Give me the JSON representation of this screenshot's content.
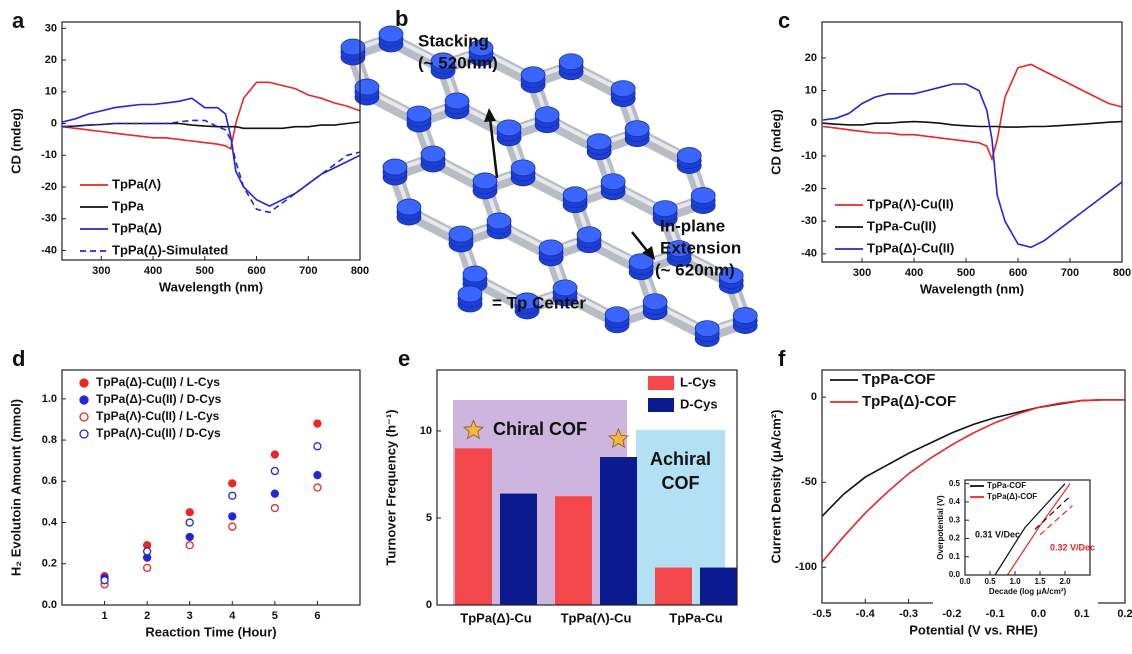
{
  "chart_data": [
    {
      "type": "line",
      "panel_label": "a",
      "x_label": "Wavelength (nm)",
      "y_label": "CD (mdeg)",
      "x": [
        225,
        250,
        275,
        300,
        325,
        350,
        375,
        400,
        425,
        450,
        475,
        500,
        525,
        540,
        550,
        560,
        575,
        600,
        625,
        650,
        675,
        700,
        725,
        750,
        775,
        800
      ],
      "xlim": [
        224,
        800
      ],
      "xticks": [
        300,
        400,
        500,
        600,
        700,
        800
      ],
      "ylim": [
        -43,
        32
      ],
      "yticks": [
        30,
        20,
        10,
        0,
        -10,
        -20,
        -30,
        -40
      ],
      "series": [
        {
          "name": "TpPa(Λ)",
          "color": "#ec2525",
          "style": "solid",
          "values": [
            -1,
            -1.5,
            -2,
            -2.5,
            -3,
            -3.5,
            -4,
            -4.5,
            -4.5,
            -5,
            -5.5,
            -6,
            -6.5,
            -7,
            -8,
            0,
            8,
            13,
            13,
            12,
            11,
            9,
            8,
            6.5,
            5.5,
            4
          ]
        },
        {
          "name": "TpPa",
          "color": "#111111",
          "style": "solid",
          "values": [
            -1,
            -0.8,
            -0.5,
            -0.3,
            0,
            0,
            0,
            0,
            0,
            0,
            -0.5,
            -0.8,
            -1,
            -1,
            -1,
            -1,
            -1.5,
            -1.5,
            -1.5,
            -1.5,
            -1,
            -1,
            -0.5,
            -0.5,
            0,
            0.5
          ]
        },
        {
          "name": "TpPa(Δ)",
          "color": "#2424dd",
          "style": "solid",
          "values": [
            0.5,
            1.5,
            3,
            4,
            5,
            5.5,
            6,
            6,
            6.5,
            7,
            8,
            5,
            5,
            3,
            -4,
            -15,
            -20,
            -24,
            -26,
            -24,
            -22,
            -19,
            -16,
            -14,
            -12,
            -10
          ]
        },
        {
          "name": "TpPa(Δ)-Simulated",
          "color": "#2424dd",
          "style": "dashed",
          "values": [
            -1,
            -0.8,
            -0.5,
            -0.3,
            0,
            0,
            0,
            0,
            0,
            0.5,
            1,
            1,
            -1,
            -2,
            -5,
            -12,
            -20,
            -27,
            -28,
            -25,
            -22,
            -19,
            -16,
            -13,
            -10,
            -9
          ]
        }
      ]
    },
    {
      "type": "line",
      "panel_label": "c",
      "x_label": "Wavelength (nm)",
      "y_label": "CD (mdeg)",
      "x": [
        225,
        250,
        275,
        300,
        325,
        350,
        375,
        400,
        425,
        450,
        475,
        500,
        525,
        540,
        550,
        560,
        575,
        600,
        625,
        650,
        675,
        700,
        725,
        750,
        775,
        800
      ],
      "xlim": [
        223,
        800
      ],
      "xticks": [
        300,
        400,
        500,
        600,
        700,
        800
      ],
      "ylim": [
        -42.5,
        31
      ],
      "yticks": [
        20,
        10,
        0,
        -10,
        -20,
        -30,
        -40
      ],
      "series": [
        {
          "name": "TpPa(Λ)-Cu(II)",
          "color": "#ec2525",
          "style": "solid",
          "values": [
            -1,
            -1.5,
            -2,
            -2.5,
            -3,
            -3,
            -3.5,
            -3.5,
            -4,
            -4.5,
            -5,
            -5.5,
            -6,
            -7,
            -11,
            -5,
            8,
            17,
            18,
            16,
            14,
            12,
            10,
            8,
            6,
            5
          ]
        },
        {
          "name": "TpPa-Cu(II)",
          "color": "#111111",
          "style": "solid",
          "values": [
            0,
            -0.3,
            -0.5,
            -0.5,
            0,
            0,
            0.3,
            0.5,
            0.3,
            0,
            -0.5,
            -0.8,
            -1,
            -1,
            -1,
            -1,
            -1.2,
            -1.2,
            -1,
            -1,
            -0.8,
            -0.5,
            -0.3,
            0,
            0.3,
            0.5
          ]
        },
        {
          "name": "TpPa(Δ)-Cu(II)",
          "color": "#2424dd",
          "style": "solid",
          "values": [
            1,
            1.5,
            3,
            6,
            8,
            9,
            9,
            9,
            10,
            11,
            12,
            12,
            10,
            4,
            -5,
            -22,
            -30,
            -37,
            -38,
            -36,
            -33,
            -30,
            -27,
            -24,
            -21,
            -18
          ]
        }
      ]
    },
    {
      "type": "scatter",
      "panel_label": "d",
      "x_label": "Reaction Time (Hour)",
      "y_label": "H₂ Evolutoin Amount (mmol)",
      "x": [
        1,
        2,
        3,
        4,
        5,
        6
      ],
      "xlim": [
        0,
        7
      ],
      "xticks": [
        1,
        2,
        3,
        4,
        5,
        6
      ],
      "ylim": [
        0,
        1.14
      ],
      "yticks": [
        {
          "value": 0,
          "label": "0.0"
        },
        0.2,
        0.4,
        0.6,
        0.8,
        {
          "value": 1,
          "label": "1.0"
        }
      ],
      "series": [
        {
          "name": "TpPa(Δ)-Cu(II) / L-Cys",
          "color": "#ec2525",
          "marker": "filled",
          "values": [
            0.14,
            0.29,
            0.45,
            0.59,
            0.73,
            0.88
          ]
        },
        {
          "name": "TpPa(Δ)-Cu(II) / D-Cys",
          "color": "#2424dd",
          "marker": "filled",
          "values": [
            0.13,
            0.23,
            0.33,
            0.43,
            0.54,
            0.63
          ]
        },
        {
          "name": "TpPa(Λ)-Cu(II) / L-Cys",
          "color": "#ec2525",
          "marker": "open",
          "values": [
            0.1,
            0.18,
            0.29,
            0.38,
            0.47,
            0.57
          ]
        },
        {
          "name": "TpPa(Λ)-Cu(II) / D-Cys",
          "color": "#2424dd",
          "marker": "open",
          "values": [
            0.12,
            0.26,
            0.4,
            0.53,
            0.65,
            0.77
          ]
        }
      ]
    },
    {
      "type": "bar",
      "panel_label": "e",
      "y_label": "Turnover Frequency (h⁻¹)",
      "categories": [
        "TpPa(Δ)-Cu",
        "TpPa(Λ)-Cu",
        "TpPa-Cu"
      ],
      "ylim": [
        0,
        13.5
      ],
      "yticks": [
        0,
        5,
        10
      ],
      "regions": [
        {
          "lines": [
            "Chiral COF"
          ],
          "color": "#cdb5de"
        },
        {
          "lines": [
            "Achiral",
            "COF"
          ],
          "color": "#b3e1f3"
        }
      ],
      "series": [
        {
          "name": "L-Cys",
          "color": "#f4474c",
          "values": [
            9.0,
            6.25,
            2.15
          ]
        },
        {
          "name": "D-Cys",
          "color": "#0b1a8e",
          "values": [
            6.4,
            8.5,
            2.15
          ]
        }
      ]
    },
    {
      "type": "line",
      "panel_label": "f",
      "x_label": "Potential (V vs. RHE)",
      "y_label": "Current Density (μA/cm²)",
      "x": [
        -0.5,
        -0.45,
        -0.4,
        -0.35,
        -0.3,
        -0.25,
        -0.2,
        -0.15,
        -0.1,
        -0.05,
        0,
        0.05,
        0.1,
        0.15,
        0.2
      ],
      "xlim": [
        -0.5,
        0.2
      ],
      "xticks": [
        -0.5,
        -0.4,
        -0.3,
        -0.2,
        -0.1,
        {
          "value": 0,
          "label": "0.0"
        },
        0.1,
        0.2
      ],
      "ylim": [
        -121,
        16
      ],
      "yticks": [
        0,
        -50,
        -100
      ],
      "series": [
        {
          "name": "TpPa-COF",
          "color": "#111111",
          "style": "solid",
          "values": [
            -70,
            -57,
            -47,
            -40,
            -33,
            -27,
            -21,
            -16,
            -12,
            -9,
            -6,
            -4,
            -2,
            -1.5,
            -1.5
          ]
        },
        {
          "name": "TpPa(Δ)-COF",
          "color": "#ec2525",
          "style": "solid",
          "values": [
            -97,
            -82,
            -68,
            -56,
            -45,
            -36,
            -28,
            -21,
            -15,
            -10,
            -6,
            -3.5,
            -2,
            -1.5,
            -1.5
          ]
        }
      ]
    },
    {
      "type": "line",
      "x_label": "Decade (log μA/cm²)",
      "y_label": "Overpotential (V)",
      "xlim": [
        0,
        2.5
      ],
      "xticks": [
        {
          "value": 0,
          "label": "0.0"
        },
        0.5,
        {
          "value": 1,
          "label": "1.0"
        },
        1.5,
        {
          "value": 2,
          "label": "2.0"
        }
      ],
      "ylim": [
        0,
        0.52
      ],
      "yticks": [
        {
          "value": 0,
          "label": "0.0"
        },
        0.1,
        0.2,
        0.3,
        0.4,
        0.5
      ],
      "annotations": [
        {
          "text": "0.31 V/Dec",
          "color": "#111111"
        },
        {
          "text": "0.32 V/Dec",
          "color": "#ec2525"
        }
      ],
      "series": [
        {
          "name": "TpPa-COF",
          "color": "#111111",
          "style": "solid",
          "x": [
            0.6,
            1.2,
            2.0
          ],
          "values": [
            0,
            0.26,
            0.5
          ]
        },
        {
          "name": "TpPa(Δ)-COF",
          "color": "#ec2525",
          "style": "solid",
          "x": [
            0.85,
            1.5,
            2.1
          ],
          "values": [
            0,
            0.27,
            0.5
          ]
        },
        {
          "color": "#111111",
          "style": "dashed",
          "x": [
            1.4,
            2.1
          ],
          "values": [
            0.25,
            0.43
          ]
        },
        {
          "color": "#ec2525",
          "style": "dashed",
          "x": [
            1.5,
            2.15
          ],
          "values": [
            0.22,
            0.38
          ]
        }
      ]
    }
  ],
  "diagram": {
    "panel_label": "b",
    "stacking": [
      "Stacking",
      "(~ 520nm)"
    ],
    "extension": [
      "In-plane",
      "Extension",
      "(~ 620nm)"
    ],
    "legend": "= Tp Center"
  }
}
